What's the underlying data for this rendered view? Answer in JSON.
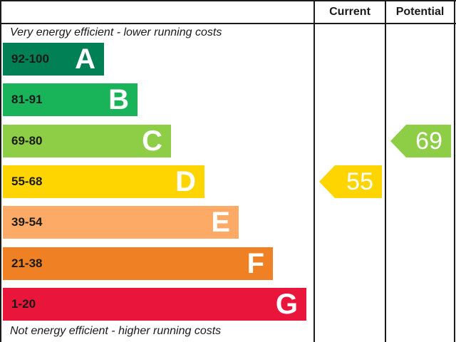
{
  "header": {
    "current_label": "Current",
    "potential_label": "Potential"
  },
  "captions": {
    "top": "Very energy efficient - lower running costs",
    "bottom": "Not energy efficient - higher running costs"
  },
  "chart_data": {
    "type": "bar",
    "bands": [
      {
        "letter": "A",
        "range": "92-100",
        "min": 92,
        "max": 100,
        "color": "#008054"
      },
      {
        "letter": "B",
        "range": "81-91",
        "min": 81,
        "max": 91,
        "color": "#19b459"
      },
      {
        "letter": "C",
        "range": "69-80",
        "min": 69,
        "max": 80,
        "color": "#8dce46"
      },
      {
        "letter": "D",
        "range": "55-68",
        "min": 55,
        "max": 68,
        "color": "#ffd500"
      },
      {
        "letter": "E",
        "range": "39-54",
        "min": 39,
        "max": 54,
        "color": "#fcaa65"
      },
      {
        "letter": "F",
        "range": "21-38",
        "min": 21,
        "max": 38,
        "color": "#ef8023"
      },
      {
        "letter": "G",
        "range": "1-20",
        "min": 1,
        "max": 20,
        "color": "#e9153b"
      }
    ],
    "current": {
      "value": 55,
      "band": "D",
      "color": "#ffd500"
    },
    "potential": {
      "value": 69,
      "band": "C",
      "color": "#8dce46"
    }
  }
}
